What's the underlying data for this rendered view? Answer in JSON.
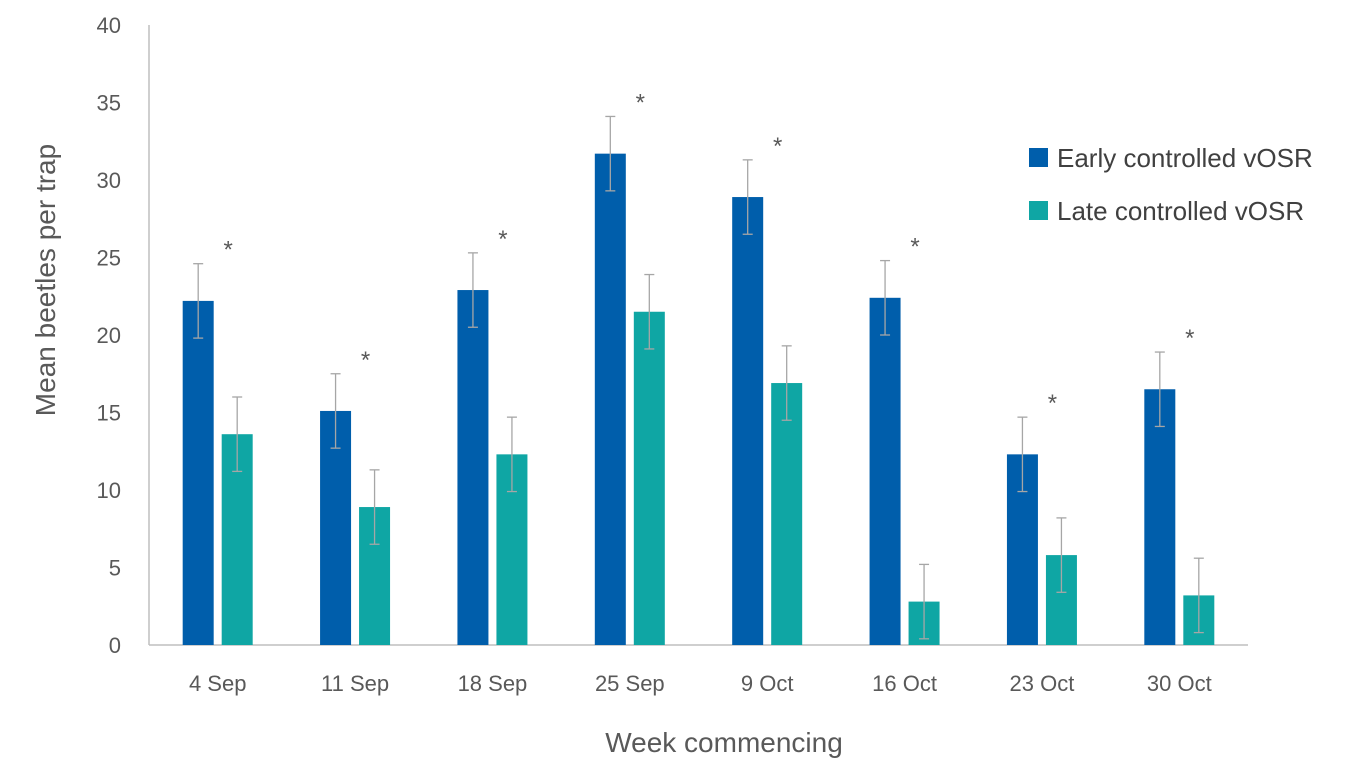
{
  "chart_data": {
    "type": "bar",
    "title": "",
    "xlabel": "Week commencing",
    "ylabel": "Mean beetles per trap",
    "ylim": [
      0,
      40
    ],
    "yticks": [
      0,
      5,
      10,
      15,
      20,
      25,
      30,
      35,
      40
    ],
    "grid": false,
    "legend_position": "right",
    "categories": [
      "4 Sep",
      "11 Sep",
      "18 Sep",
      "25 Sep",
      "9 Oct",
      "16 Oct",
      "23 Oct",
      "30 Oct"
    ],
    "series": [
      {
        "name": "Early controlled vOSR",
        "color": "#005EAB",
        "values": [
          22.2,
          15.1,
          22.9,
          31.7,
          28.9,
          22.4,
          12.3,
          16.5
        ],
        "error": [
          2.4,
          2.4,
          2.4,
          2.4,
          2.4,
          2.4,
          2.4,
          2.4
        ]
      },
      {
        "name": "Late controlled vOSR",
        "color": "#0FA6A4",
        "values": [
          13.6,
          8.9,
          12.3,
          21.5,
          16.9,
          2.8,
          5.8,
          3.2
        ],
        "error": [
          2.4,
          2.4,
          2.4,
          2.4,
          2.4,
          2.4,
          2.4,
          2.4
        ]
      }
    ],
    "significance_marker": "*",
    "significant": [
      true,
      true,
      true,
      true,
      true,
      true,
      true,
      true
    ]
  }
}
